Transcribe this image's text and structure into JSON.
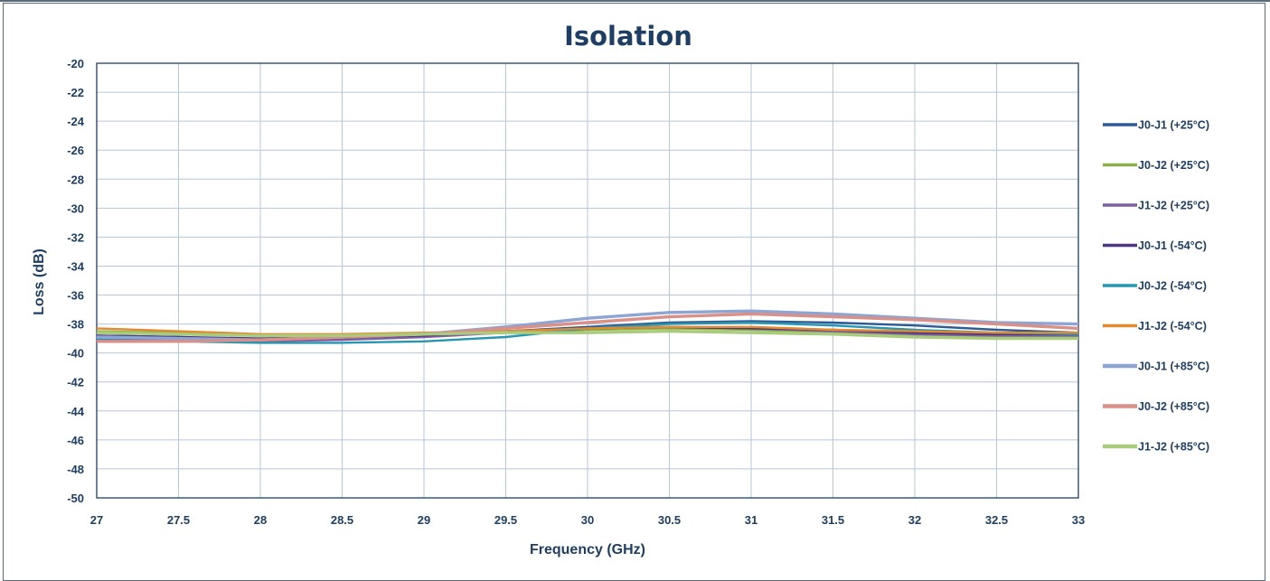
{
  "chart_data": {
    "type": "line",
    "title": "Isolation",
    "xlabel": "Frequency (GHz)",
    "ylabel": "Loss (dB)",
    "xlim": [
      27,
      33
    ],
    "ylim": [
      -50,
      -20
    ],
    "x_ticks": [
      "27",
      "27.5",
      "28",
      "28.5",
      "29",
      "29.5",
      "30",
      "30.5",
      "31",
      "31.5",
      "32",
      "32.5",
      "33"
    ],
    "y_ticks": [
      "-20",
      "-22",
      "-24",
      "-26",
      "-28",
      "-30",
      "-32",
      "-34",
      "-36",
      "-38",
      "-40",
      "-42",
      "-44",
      "-46",
      "-48",
      "-50"
    ],
    "grid": true,
    "legend_position": "right",
    "x": [
      27,
      27.5,
      28,
      28.5,
      29,
      29.5,
      30,
      30.5,
      31,
      31.5,
      32,
      32.5,
      33
    ],
    "series": [
      {
        "name": "J0-J1 (+25°C)",
        "color": "#2f5b94",
        "values": [
          -38.8,
          -38.9,
          -39.1,
          -39.0,
          -38.8,
          -38.5,
          -38.2,
          -37.9,
          -37.8,
          -37.9,
          -38.1,
          -38.4,
          -38.6
        ]
      },
      {
        "name": "J0-J2 (+25°C)",
        "color": "#8db04a",
        "values": [
          -38.5,
          -38.6,
          -38.8,
          -38.8,
          -38.7,
          -38.6,
          -38.4,
          -38.3,
          -38.4,
          -38.6,
          -38.8,
          -38.9,
          -38.9
        ]
      },
      {
        "name": "J1-J2 (+25°C)",
        "color": "#7f5fa0",
        "values": [
          -39.0,
          -39.1,
          -39.2,
          -39.1,
          -38.9,
          -38.6,
          -38.3,
          -38.2,
          -38.3,
          -38.5,
          -38.7,
          -38.8,
          -38.8
        ]
      },
      {
        "name": "J0-J1 (-54°C)",
        "color": "#4b3880",
        "values": [
          -38.8,
          -38.9,
          -39.0,
          -38.9,
          -38.8,
          -38.5,
          -38.3,
          -38.2,
          -38.3,
          -38.4,
          -38.6,
          -38.7,
          -38.7
        ]
      },
      {
        "name": "J0-J2 (-54°C)",
        "color": "#2796b0",
        "values": [
          -39.1,
          -39.2,
          -39.3,
          -39.3,
          -39.2,
          -38.9,
          -38.3,
          -38.0,
          -37.9,
          -38.1,
          -38.4,
          -38.6,
          -38.7
        ]
      },
      {
        "name": "J1-J2 (-54°C)",
        "color": "#e38a2e",
        "values": [
          -38.3,
          -38.5,
          -38.7,
          -38.7,
          -38.6,
          -38.5,
          -38.3,
          -38.2,
          -38.2,
          -38.4,
          -38.5,
          -38.6,
          -38.6
        ]
      },
      {
        "name": "J0-J1 (+85°C)",
        "color": "#8da5d3",
        "values": [
          -38.9,
          -39.0,
          -39.1,
          -38.9,
          -38.7,
          -38.2,
          -37.6,
          -37.2,
          -37.1,
          -37.3,
          -37.6,
          -37.9,
          -38.0
        ]
      },
      {
        "name": "J0-J2 (+85°C)",
        "color": "#d99088",
        "values": [
          -39.2,
          -39.2,
          -39.1,
          -38.9,
          -38.7,
          -38.3,
          -37.9,
          -37.5,
          -37.3,
          -37.5,
          -37.7,
          -38.0,
          -38.3
        ]
      },
      {
        "name": "J1-J2 (+85°C)",
        "color": "#a9cc7c",
        "values": [
          -38.6,
          -38.7,
          -38.8,
          -38.8,
          -38.7,
          -38.6,
          -38.6,
          -38.5,
          -38.6,
          -38.7,
          -38.9,
          -39.0,
          -39.0
        ]
      }
    ]
  }
}
